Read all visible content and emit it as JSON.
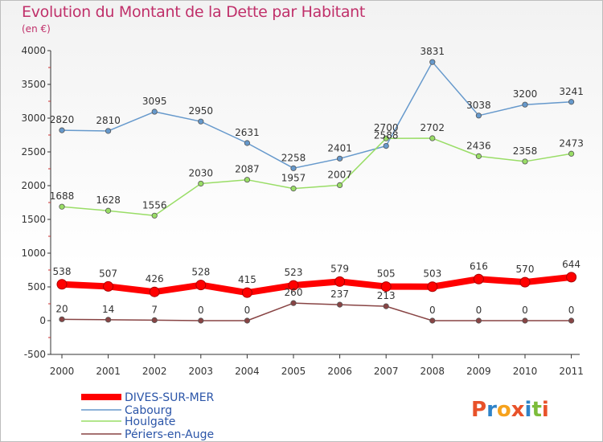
{
  "header": {
    "title": "Evolution du Montant de la Dette par Habitant",
    "subtitle": "(en €)"
  },
  "logo": {
    "text": "Proxiti",
    "letters": [
      "P",
      "r",
      "o",
      "x",
      "i",
      "t",
      "i"
    ],
    "letter_colors": [
      "#e8522a",
      "#2f83c8",
      "#f6a21d",
      "#e8522a",
      "#2f83c8",
      "#7cbc3a",
      "#e8522a"
    ]
  },
  "chart_data": {
    "type": "line",
    "title": "Evolution du Montant de la Dette par Habitant",
    "subtitle": "(en €)",
    "xlabel": "",
    "ylabel": "",
    "categories": [
      "2000",
      "2001",
      "2002",
      "2003",
      "2004",
      "2005",
      "2006",
      "2007",
      "2008",
      "2009",
      "2010",
      "2011"
    ],
    "ylim": [
      -500,
      4000
    ],
    "yticks": [
      -500,
      0,
      500,
      1000,
      1500,
      2000,
      2500,
      3000,
      3500,
      4000
    ],
    "grid": false,
    "legend_position": "bottom-left",
    "series": [
      {
        "name": "DIVES-SUR-MER",
        "color": "#ff0000",
        "values": [
          538,
          507,
          426,
          528,
          415,
          523,
          579,
          505,
          503,
          616,
          570,
          644
        ]
      },
      {
        "name": "Cabourg",
        "color": "#6699cc",
        "values": [
          2820,
          2810,
          3095,
          2950,
          2631,
          2258,
          2401,
          2588,
          3831,
          3038,
          3200,
          3241
        ]
      },
      {
        "name": "Houlgate",
        "color": "#99dd66",
        "values": [
          1688,
          1628,
          1556,
          2030,
          2087,
          1957,
          2007,
          2700,
          2702,
          2436,
          2358,
          2473
        ]
      },
      {
        "name": "Périers-en-Auge",
        "color": "#884444",
        "values": [
          20,
          14,
          7,
          0,
          0,
          260,
          237,
          213,
          0,
          0,
          0,
          0
        ]
      }
    ]
  }
}
